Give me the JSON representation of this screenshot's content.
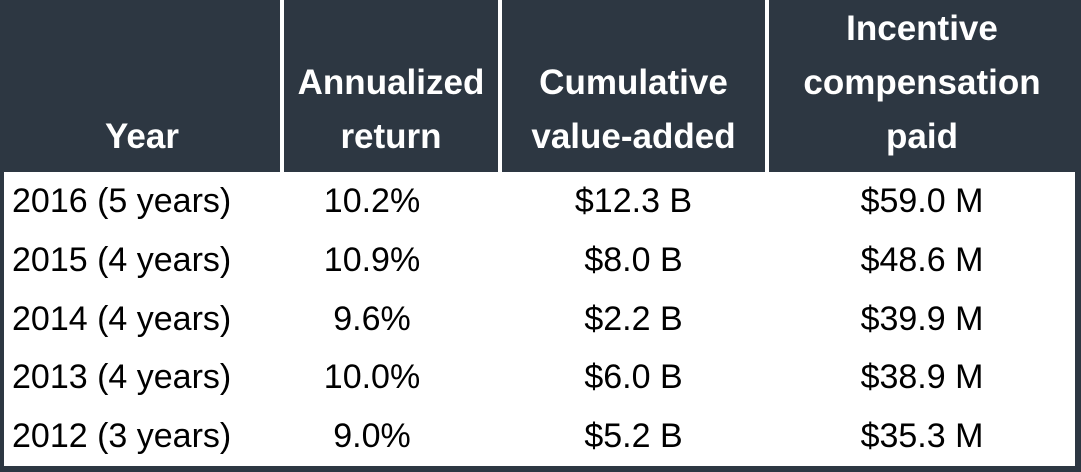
{
  "table": {
    "header": [
      [
        "Year"
      ],
      [
        "Annualized",
        "return"
      ],
      [
        "Cumulative",
        "value-added"
      ],
      [
        "Incentive",
        "compensation",
        "paid"
      ]
    ],
    "rows": [
      [
        "2016 (5 years)",
        "10.2%",
        "$12.3 B",
        "$59.0 M"
      ],
      [
        "2015 (4 years)",
        "10.9%",
        "$8.0 B",
        "$48.6 M"
      ],
      [
        "2014 (4 years)",
        "9.6%",
        "$2.2 B",
        "$39.9 M"
      ],
      [
        "2013 (4 years)",
        "10.0%",
        "$6.0 B",
        "$38.9 M"
      ],
      [
        "2012 (3 years)",
        "9.0%",
        "$5.2 B",
        "$35.3 M"
      ]
    ]
  }
}
